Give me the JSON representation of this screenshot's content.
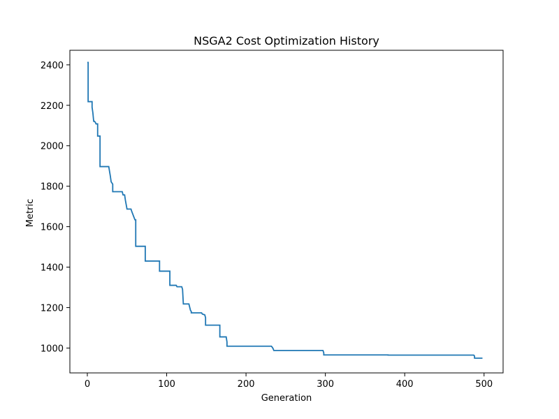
{
  "chart_data": {
    "type": "line",
    "title": "NSGA2 Cost Optimization History",
    "xlabel": "Generation",
    "ylabel": "Metric",
    "xlim": [
      -22,
      524
    ],
    "ylim": [
      877,
      2472
    ],
    "xticks": [
      0,
      100,
      200,
      300,
      400,
      500
    ],
    "yticks": [
      1000,
      1200,
      1400,
      1600,
      1800,
      2000,
      2200,
      2400
    ],
    "grid": false,
    "legend": "none",
    "colors": {
      "line": "#1f77b4",
      "axes": "#000000",
      "background": "#ffffff"
    },
    "series": [
      {
        "x": [
          0,
          1,
          1,
          6,
          6,
          7,
          8,
          9,
          10,
          11,
          12,
          13,
          13,
          16,
          16,
          17,
          17,
          27,
          29,
          30,
          32,
          32,
          42,
          44,
          45,
          47,
          48,
          50,
          55,
          56,
          60,
          61,
          61,
          72,
          73,
          73,
          90,
          91,
          91,
          103,
          104,
          104,
          112,
          113,
          119,
          120,
          121,
          128,
          129,
          130,
          131,
          131,
          144,
          145,
          148,
          149,
          149,
          166,
          167,
          167,
          175,
          176,
          176,
          232,
          233,
          234,
          235,
          297,
          298,
          298,
          378,
          379,
          379,
          487,
          488,
          488,
          498
        ],
        "y": [
          2412,
          2412,
          2218,
          2218,
          2190,
          2162,
          2121,
          2121,
          2116,
          2108,
          2108,
          2108,
          2048,
          2048,
          1897,
          1897,
          1897,
          1897,
          1850,
          1822,
          1810,
          1773,
          1773,
          1773,
          1757,
          1757,
          1730,
          1687,
          1687,
          1675,
          1634,
          1634,
          1503,
          1503,
          1503,
          1430,
          1430,
          1430,
          1380,
          1380,
          1380,
          1310,
          1310,
          1303,
          1303,
          1290,
          1218,
          1218,
          1202,
          1186,
          1181,
          1174,
          1174,
          1168,
          1164,
          1150,
          1113,
          1113,
          1113,
          1055,
          1055,
          1030,
          1009,
          1009,
          1004,
          998,
          988,
          988,
          976,
          966,
          966,
          966,
          965,
          965,
          960,
          950,
          950
        ]
      }
    ]
  }
}
